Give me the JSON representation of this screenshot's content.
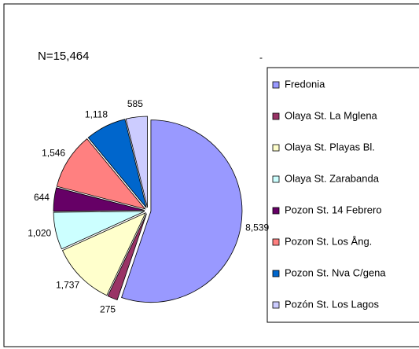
{
  "chart_data": {
    "type": "pie",
    "title": "N=15,464",
    "annotation": "-",
    "categories": [
      "Fredonia",
      "Olaya St. La Mglena",
      "Olaya  St. Playas Bl.",
      "Olaya  St. Zarabanda",
      "Pozon St. 14 Febrero",
      "Pozon St. Los Ång.",
      "Pozon St. Nva C/gena",
      "Pozón St. Los Lagos"
    ],
    "values": [
      8539,
      275,
      1737,
      1020,
      644,
      1546,
      1118,
      585
    ],
    "value_labels": [
      "8,539",
      "275",
      "1,737",
      "1,020",
      "644",
      "1,546",
      "1,118",
      "585"
    ],
    "colors": [
      "#9999ff",
      "#993366",
      "#ffffcc",
      "#ccffff",
      "#660066",
      "#ff8080",
      "#0066cc",
      "#ccccff"
    ],
    "legend": "right"
  }
}
